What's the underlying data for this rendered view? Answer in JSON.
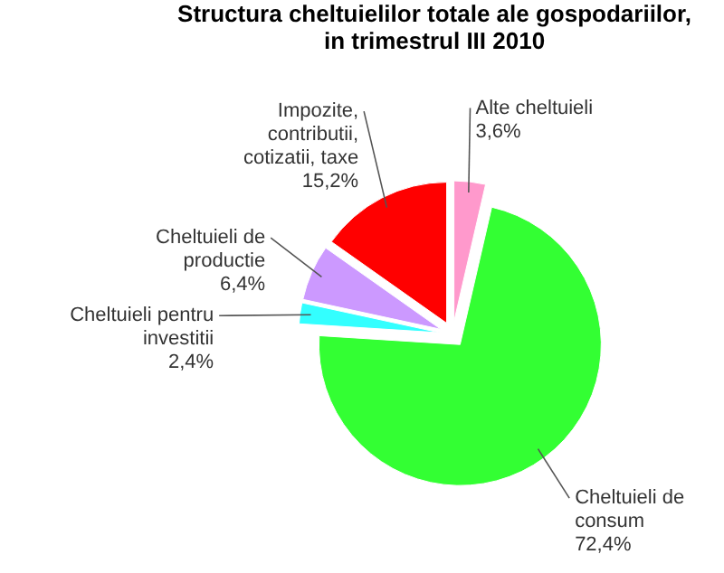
{
  "chart_data": {
    "type": "pie",
    "title": "Structura cheltuielilor totale ale gospodariilor, in trimestrul III  2010",
    "categories": [
      "Alte cheltuieli",
      "Cheltuieli de consum",
      "Cheltuieli pentru investitii",
      "Cheltuieli de productie",
      "Impozite, contributii, cotizatii, taxe"
    ],
    "values": [
      3.6,
      72.4,
      2.4,
      6.4,
      15.2
    ],
    "value_labels": [
      "3,6%",
      "72,4%",
      "2,4%",
      "6,4%",
      "15,2%"
    ],
    "colors": [
      "#ff99cc",
      "#33ff33",
      "#33ffff",
      "#cc99ff",
      "#ff0000"
    ],
    "legend": false
  }
}
